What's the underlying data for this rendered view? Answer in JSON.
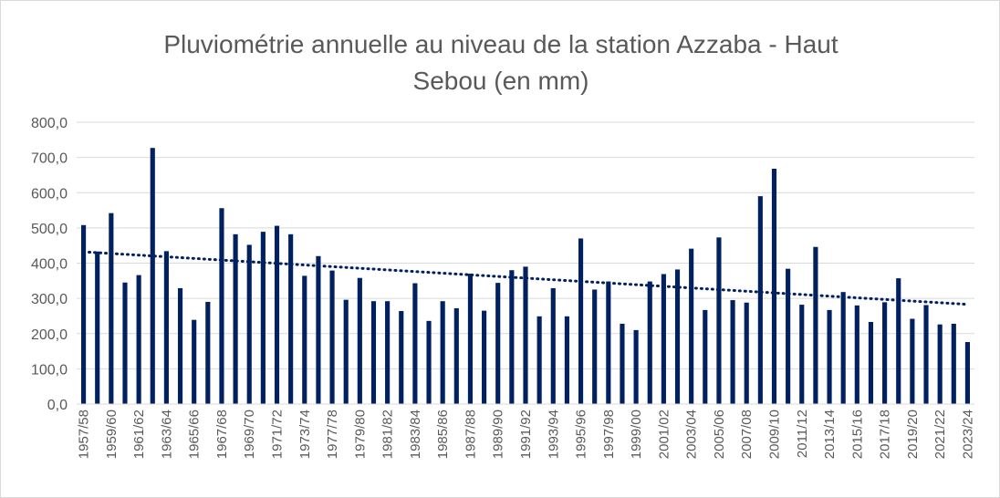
{
  "chart_data": {
    "type": "bar",
    "title_line1": "Pluviométrie annuelle au niveau de la station Azzaba - Haut",
    "title_line2": "Sebou (en mm)",
    "xlabel": "",
    "ylabel": "",
    "ylim": [
      0,
      800
    ],
    "y_ticks": [
      0,
      100,
      200,
      300,
      400,
      500,
      600,
      700,
      800
    ],
    "y_tick_labels": [
      "0,0",
      "100,0",
      "200,0",
      "300,0",
      "400,0",
      "500,0",
      "600,0",
      "700,0",
      "800,0"
    ],
    "grid": true,
    "bar_color": "#002060",
    "trendline": {
      "type": "linear",
      "style": "dotted",
      "color": "#002060",
      "start": 432,
      "end": 283
    },
    "categories": [
      "1957/58",
      "1958/59",
      "1959/60",
      "1960/61",
      "1961/62",
      "1962/63",
      "1963/64",
      "1964/65",
      "1965/66",
      "1966/67",
      "1967/68",
      "1968/69",
      "1969/70",
      "1970/71",
      "1971/72",
      "1972/73",
      "1973/74",
      "1976/77",
      "1977/78",
      "1978/79",
      "1979/80",
      "1980/81",
      "1981/82",
      "1982/83",
      "1983/84",
      "1984/85",
      "1985/86",
      "1986/87",
      "1987/88",
      "1988/89",
      "1989/90",
      "1990/91",
      "1991/92",
      "1992/93",
      "1993/94",
      "1994/95",
      "1995/96",
      "1996/97",
      "1997/98",
      "1998/99",
      "1999/00",
      "2000/01",
      "2001/02",
      "2002/03",
      "2003/04",
      "2004/05",
      "2005/06",
      "2006/07",
      "2007/08",
      "2008/09",
      "2009/10",
      "2010/11",
      "2011/12",
      "2012/13",
      "2013/14",
      "2014/15",
      "2015/16",
      "2016/17",
      "2017/18",
      "2018/19",
      "2019/20",
      "2020/21",
      "2021/22",
      "2022/23",
      "2023/24"
    ],
    "x_tick_labels": [
      "1957/58",
      "1959/60",
      "1961/62",
      "1963/64",
      "1965/66",
      "1967/68",
      "1969/70",
      "1971/72",
      "1973/74",
      "1977/78",
      "1979/80",
      "1981/82",
      "1983/84",
      "1985/86",
      "1987/88",
      "1989/90",
      "1991/92",
      "1993/94",
      "1995/96",
      "1997/98",
      "1999/00",
      "2001/02",
      "2003/04",
      "2005/06",
      "2007/08",
      "2009/10",
      "2011/12",
      "2013/14",
      "2015/16",
      "2017/18",
      "2019/20",
      "2021/22",
      "2023/24"
    ],
    "values": [
      508,
      433,
      542,
      345,
      366,
      727,
      434,
      329,
      239,
      290,
      556,
      482,
      452,
      489,
      506,
      482,
      364,
      420,
      379,
      296,
      358,
      292,
      292,
      264,
      343,
      236,
      292,
      272,
      370,
      265,
      344,
      380,
      390,
      249,
      329,
      249,
      470,
      325,
      348,
      228,
      210,
      348,
      369,
      382,
      441,
      267,
      473,
      295,
      288,
      590,
      668,
      384,
      282,
      446,
      267,
      318,
      280,
      233,
      289,
      357,
      242,
      281,
      226,
      228,
      176
    ]
  }
}
